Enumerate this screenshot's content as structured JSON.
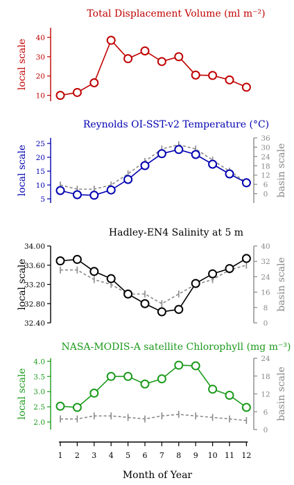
{
  "chart_data": [
    {
      "type": "line",
      "title": "Total Displacement Volume (ml m⁻²)",
      "color": "#c00000",
      "left_axis": {
        "label": "local scale",
        "ylim": [
          7,
          45
        ],
        "ticks": [
          10,
          20,
          30,
          40
        ]
      },
      "right_axis": null,
      "x": [
        1,
        2,
        3,
        4,
        5,
        6,
        7,
        8,
        9,
        10,
        11,
        12
      ],
      "series": [
        {
          "role": "local",
          "values": [
            10,
            11.5,
            16.5,
            38.5,
            29,
            33,
            27.5,
            30,
            20.5,
            20.3,
            18,
            14.2
          ]
        }
      ]
    },
    {
      "type": "line",
      "title": "Reynolds OI-SST-v2 Temperature (°C)",
      "color": "#0000b0",
      "left_axis": {
        "label": "local scale",
        "ylim": [
          3.5,
          27
        ],
        "ticks": [
          5,
          10,
          15,
          20,
          25
        ]
      },
      "right_axis": {
        "label": "basin scale",
        "ylim": [
          -6,
          36
        ],
        "ticks": [
          0,
          6,
          12,
          18,
          24,
          30,
          36
        ]
      },
      "x": [
        1,
        2,
        3,
        4,
        5,
        6,
        7,
        8,
        9,
        10,
        11,
        12
      ],
      "series": [
        {
          "role": "local",
          "values": [
            8,
            6.5,
            6.3,
            8.2,
            12,
            17,
            21.3,
            22.8,
            21,
            17.5,
            14,
            10.8
          ]
        },
        {
          "role": "basin",
          "dashed": true,
          "values": [
            10,
            8.5,
            8.5,
            10,
            14,
            18.5,
            23,
            24.5,
            23,
            19,
            15,
            11
          ]
        }
      ]
    },
    {
      "type": "line",
      "title": "Hadley-EN4 Salinity at 5 m",
      "color": "#000000",
      "left_axis": {
        "label": "local scale",
        "ylim": [
          32.4,
          34
        ],
        "ticks": [
          "32.40",
          "32.80",
          "33.20",
          "33.60",
          "34.00"
        ]
      },
      "right_axis": {
        "label": "basin scale",
        "ylim": [
          0,
          40
        ],
        "ticks": [
          0,
          8,
          16,
          24,
          32,
          40
        ]
      },
      "x": [
        1,
        2,
        3,
        4,
        5,
        6,
        7,
        8,
        9,
        10,
        11,
        12
      ],
      "series": [
        {
          "role": "local",
          "values": [
            33.69,
            33.72,
            33.47,
            33.32,
            33.0,
            32.8,
            32.63,
            32.68,
            33.22,
            33.42,
            33.53,
            33.74
          ]
        },
        {
          "role": "basin",
          "dashed": true,
          "values": [
            33.5,
            33.5,
            33.3,
            33.2,
            33.0,
            33.0,
            32.8,
            33.0,
            33.2,
            33.3,
            33.5,
            33.6
          ]
        }
      ]
    },
    {
      "type": "line",
      "title": "NASA-MODIS-A satellite Chlorophyll (mg m⁻³)",
      "color": "#1a9a1a",
      "left_axis": {
        "label": "local scale",
        "ylim": [
          1.75,
          4.1
        ],
        "ticks": [
          "2.0",
          "2.5",
          "3.0",
          "3.5",
          "4.0"
        ]
      },
      "right_axis": {
        "label": "basin scale",
        "ylim": [
          0,
          24
        ],
        "ticks": [
          0,
          6,
          12,
          18,
          24
        ]
      },
      "x": [
        1,
        2,
        3,
        4,
        5,
        6,
        7,
        8,
        9,
        10,
        11,
        12
      ],
      "series": [
        {
          "role": "local",
          "values": [
            2.52,
            2.48,
            2.95,
            3.5,
            3.5,
            3.25,
            3.42,
            3.87,
            3.85,
            3.08,
            2.88,
            2.48
          ]
        },
        {
          "role": "basin",
          "dashed": true,
          "values": [
            2.1,
            2.1,
            2.2,
            2.2,
            2.15,
            2.1,
            2.2,
            2.25,
            2.2,
            2.15,
            2.1,
            2.05
          ]
        }
      ]
    }
  ],
  "x_axis": {
    "label": "Month of Year",
    "ticks": [
      "1",
      "2",
      "3",
      "4",
      "5",
      "6",
      "7",
      "8",
      "9",
      "10",
      "11",
      "12"
    ]
  }
}
